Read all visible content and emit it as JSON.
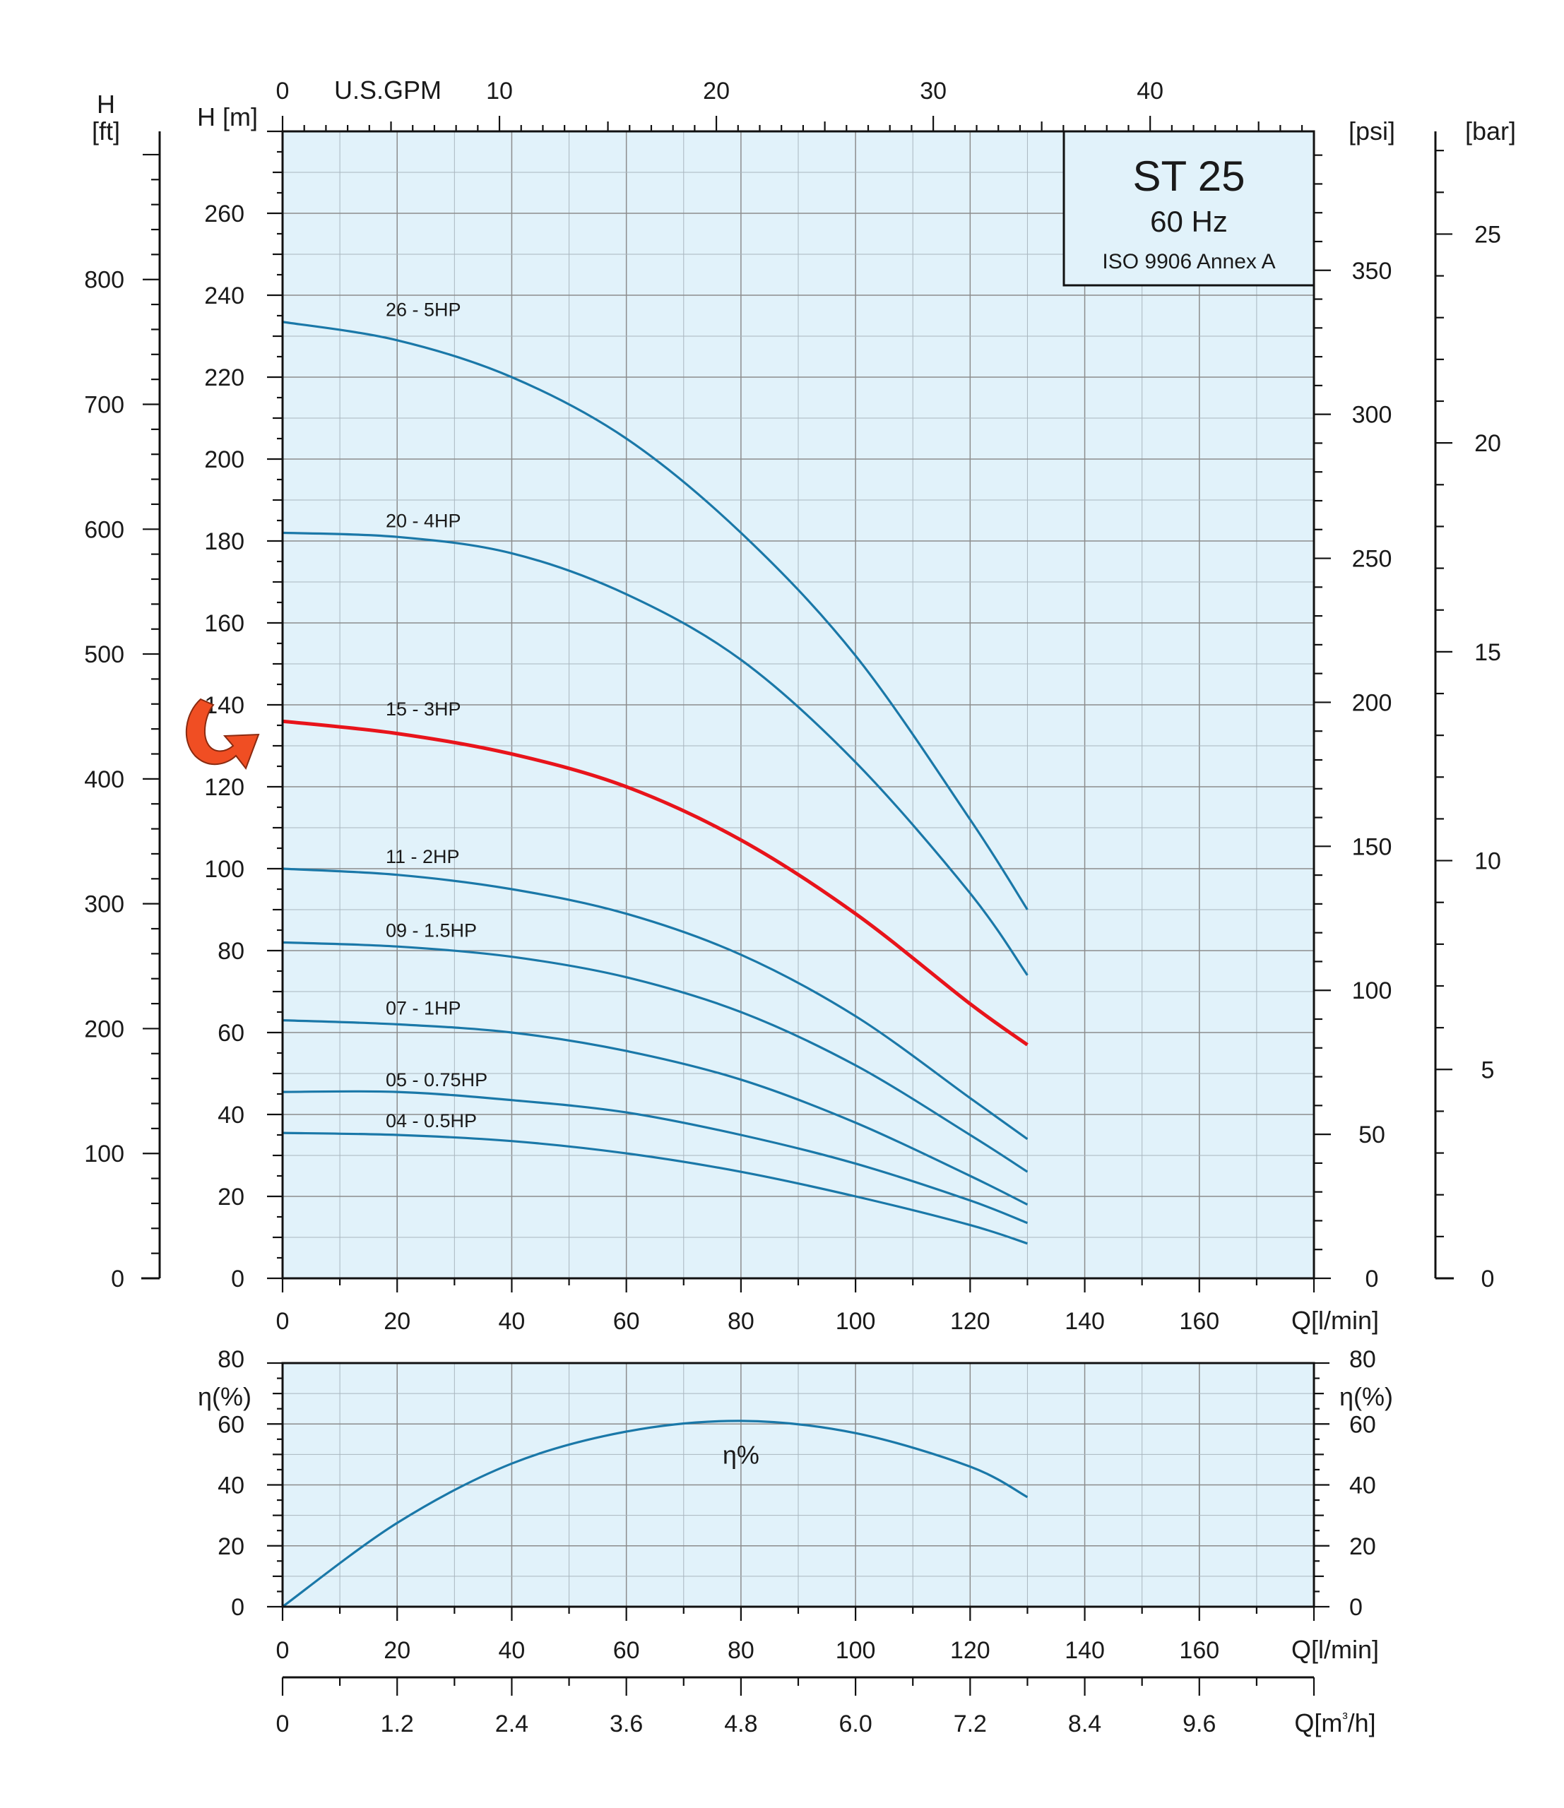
{
  "colors": {
    "plot_bg": "#e1f2fa",
    "curve": "#1a78a8",
    "highlight": "#e8141b",
    "arrow": "#f04e23"
  },
  "title_box": {
    "model": "ST 25",
    "frequency": "60 Hz",
    "standard": "ISO 9906 Annex A"
  },
  "icons": {
    "pointer": "curved-arrow-icon"
  },
  "chart_data": [
    {
      "type": "line",
      "name": "head-curves",
      "xlabel": "Q[l/min]",
      "ylabel": "H [m]",
      "x_ticks": [
        0,
        20,
        40,
        60,
        80,
        100,
        120,
        140,
        160
      ],
      "xlim": [
        0,
        180
      ],
      "y_ticks": [
        0,
        20,
        40,
        60,
        80,
        100,
        120,
        140,
        160,
        180,
        200,
        220,
        240,
        260
      ],
      "ylim": [
        0,
        280
      ],
      "grid": true,
      "top_axis": {
        "label": "U.S.GPM",
        "ticks": [
          "0",
          "10",
          "20",
          "30",
          "40"
        ],
        "values": [
          0,
          10,
          20,
          30,
          40
        ]
      },
      "left_axis_ft": {
        "unit_top": "H",
        "unit_bottom": "[ft]",
        "ticks": [
          0,
          100,
          200,
          300,
          400,
          500,
          600,
          700,
          800
        ]
      },
      "right_axis_psi": {
        "unit": "[psi]",
        "ticks": [
          0,
          50,
          100,
          150,
          200,
          250,
          300,
          350
        ]
      },
      "right_axis_bar": {
        "unit": "[bar]",
        "ticks": [
          0,
          5,
          10,
          15,
          20,
          25
        ]
      },
      "series": [
        {
          "name": "26 - 5HP",
          "highlight": false,
          "x": [
            0,
            20,
            40,
            60,
            80,
            100,
            120,
            130
          ],
          "y": [
            233.5,
            229,
            220,
            205,
            182,
            152,
            112,
            90
          ]
        },
        {
          "name": "20 - 4HP",
          "highlight": false,
          "x": [
            0,
            20,
            40,
            60,
            80,
            100,
            120,
            130
          ],
          "y": [
            182,
            181,
            177,
            167,
            151,
            126,
            94,
            74
          ]
        },
        {
          "name": "15 - 3HP",
          "highlight": true,
          "x": [
            0,
            20,
            40,
            60,
            80,
            100,
            120,
            130
          ],
          "y": [
            136,
            133,
            128,
            120,
            107,
            89,
            67,
            57
          ]
        },
        {
          "name": "11 - 2HP",
          "highlight": false,
          "x": [
            0,
            20,
            40,
            60,
            80,
            100,
            120,
            130
          ],
          "y": [
            100,
            98.5,
            95,
            89,
            79,
            64,
            44,
            34
          ]
        },
        {
          "name": "09 - 1.5HP",
          "highlight": false,
          "x": [
            0,
            20,
            40,
            60,
            80,
            100,
            120,
            130
          ],
          "y": [
            82,
            81,
            78.5,
            73.5,
            65,
            52,
            35,
            26
          ]
        },
        {
          "name": "07 - 1HP",
          "highlight": false,
          "x": [
            0,
            20,
            40,
            60,
            80,
            100,
            120,
            130
          ],
          "y": [
            63,
            62,
            60,
            55.5,
            48.5,
            38,
            25,
            18
          ]
        },
        {
          "name": "05 - 0.75HP",
          "highlight": false,
          "x": [
            0,
            20,
            40,
            60,
            80,
            100,
            120,
            130
          ],
          "y": [
            45.5,
            45.5,
            43.5,
            40.5,
            35,
            28,
            19,
            13.5
          ]
        },
        {
          "name": "04 - 0.5HP",
          "highlight": false,
          "x": [
            0,
            20,
            40,
            60,
            80,
            100,
            120,
            130
          ],
          "y": [
            35.5,
            35,
            33.5,
            30.5,
            26,
            20,
            13,
            8.5
          ]
        }
      ]
    },
    {
      "type": "line",
      "name": "efficiency-curve",
      "xlabel": "Q[l/min]",
      "ylabel": "η(%)",
      "x_ticks": [
        0,
        20,
        40,
        60,
        80,
        100,
        120,
        140,
        160
      ],
      "xlim": [
        0,
        180
      ],
      "y_ticks": [
        0,
        20,
        40,
        60,
        80
      ],
      "ylim": [
        0,
        80
      ],
      "grid": true,
      "secondary_x_axis": {
        "label": "Q[m³/h]",
        "ticks": [
          "0",
          "1.2",
          "2.4",
          "3.6",
          "4.8",
          "6.0",
          "7.2",
          "8.4",
          "9.6"
        ]
      },
      "series": [
        {
          "name": "η%",
          "x": [
            0,
            20,
            40,
            60,
            80,
            100,
            120,
            130
          ],
          "y": [
            0,
            27.5,
            47,
            57.5,
            61,
            57,
            46,
            36
          ]
        }
      ]
    }
  ]
}
